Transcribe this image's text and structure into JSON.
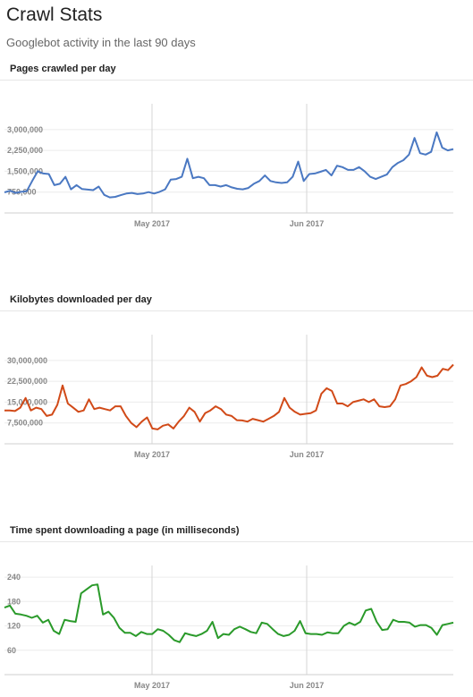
{
  "header": {
    "title": "Crawl Stats",
    "subtitle": "Googlebot activity in the last 90 days"
  },
  "chart_data": [
    {
      "type": "line",
      "title": "Pages crawled per day",
      "color": "#4a78c2",
      "x_labels": [
        "May 2017",
        "Jun 2017"
      ],
      "y_ticks": [
        "3,000,000",
        "2,250,000",
        "1,500,000",
        "750,000"
      ],
      "y_tick_values": [
        3000000,
        2250000,
        1500000,
        750000
      ],
      "ylim": [
        0,
        3800000
      ],
      "series": [
        {
          "values": [
            740000,
            800000,
            720000,
            760000,
            780000,
            1150000,
            1500000,
            1420000,
            1400000,
            1000000,
            1050000,
            1300000,
            850000,
            1000000,
            860000,
            840000,
            820000,
            950000,
            650000,
            560000,
            580000,
            640000,
            700000,
            720000,
            680000,
            700000,
            750000,
            700000,
            760000,
            850000,
            1200000,
            1220000,
            1300000,
            1950000,
            1250000,
            1300000,
            1250000,
            1000000,
            1000000,
            950000,
            1000000,
            920000,
            870000,
            850000,
            900000,
            1050000,
            1150000,
            1350000,
            1150000,
            1100000,
            1080000,
            1100000,
            1300000,
            1850000,
            1150000,
            1400000,
            1420000,
            1480000,
            1550000,
            1350000,
            1700000,
            1650000,
            1550000,
            1550000,
            1650000,
            1500000,
            1300000,
            1220000,
            1300000,
            1380000,
            1650000,
            1800000,
            1900000,
            2100000,
            2700000,
            2150000,
            2100000,
            2200000,
            2900000,
            2350000,
            2250000,
            2300000
          ]
        }
      ]
    },
    {
      "type": "line",
      "title": "Kilobytes downloaded per day",
      "color": "#d14a18",
      "x_labels": [
        "May 2017",
        "Jun 2017"
      ],
      "y_ticks": [
        "30,000,000",
        "22,500,000",
        "15,000,000",
        "7,500,000"
      ],
      "y_tick_values": [
        30000000,
        22500000,
        15000000,
        7500000
      ],
      "ylim": [
        0,
        38000000
      ],
      "series": [
        {
          "values": [
            12000000,
            12000000,
            11800000,
            13000000,
            16500000,
            12000000,
            13000000,
            12500000,
            10000000,
            10500000,
            14000000,
            21000000,
            14500000,
            13000000,
            11500000,
            12000000,
            16000000,
            12500000,
            13000000,
            12500000,
            12000000,
            13500000,
            13500000,
            10000000,
            7500000,
            6000000,
            8000000,
            9500000,
            5500000,
            5200000,
            6500000,
            7000000,
            5500000,
            8000000,
            10000000,
            13000000,
            11500000,
            8000000,
            11000000,
            12000000,
            13500000,
            12500000,
            10500000,
            10000000,
            8500000,
            8400000,
            8000000,
            9000000,
            8500000,
            8000000,
            9000000,
            10000000,
            11500000,
            16500000,
            13000000,
            11500000,
            10500000,
            10800000,
            11000000,
            12000000,
            18000000,
            20000000,
            19000000,
            14500000,
            14500000,
            13500000,
            15000000,
            15500000,
            16000000,
            15000000,
            16000000,
            13500000,
            13200000,
            13500000,
            16000000,
            21000000,
            21500000,
            22500000,
            24000000,
            27500000,
            24500000,
            24000000,
            24500000,
            27000000,
            26500000,
            28500000
          ]
        }
      ]
    },
    {
      "type": "line",
      "title": "Time spent downloading a page (in milliseconds)",
      "color": "#2a9a2a",
      "x_labels": [
        "May 2017",
        "Jun 2017"
      ],
      "y_ticks": [
        "240",
        "180",
        "120",
        "60"
      ],
      "y_tick_values": [
        240,
        180,
        120,
        60
      ],
      "ylim": [
        0,
        260
      ],
      "series": [
        {
          "values": [
            165,
            170,
            150,
            148,
            145,
            140,
            145,
            128,
            135,
            108,
            100,
            135,
            132,
            130,
            200,
            210,
            220,
            222,
            148,
            155,
            140,
            115,
            103,
            103,
            95,
            105,
            100,
            100,
            112,
            108,
            98,
            85,
            80,
            102,
            98,
            95,
            100,
            108,
            130,
            90,
            100,
            98,
            112,
            118,
            112,
            105,
            102,
            128,
            125,
            112,
            100,
            95,
            98,
            108,
            132,
            102,
            100,
            100,
            98,
            104,
            102,
            102,
            120,
            128,
            122,
            130,
            158,
            162,
            130,
            110,
            112,
            135,
            130,
            130,
            128,
            118,
            122,
            122,
            115,
            98,
            122,
            125,
            128
          ]
        }
      ]
    }
  ]
}
